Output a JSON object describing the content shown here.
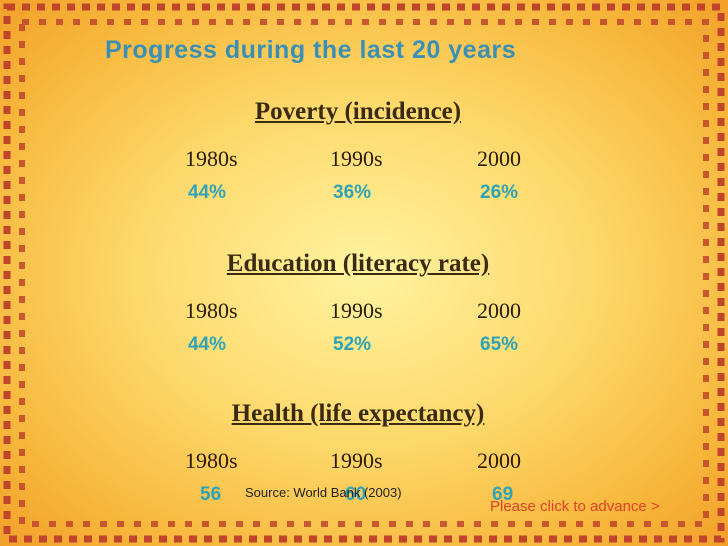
{
  "title": "Progress during the last 20 years",
  "sections": [
    {
      "heading": "Poverty (incidence)",
      "years": [
        "1980s",
        "1990s",
        "2000"
      ],
      "values": [
        "44%",
        "36%",
        "26%"
      ]
    },
    {
      "heading": "Education (literacy rate)",
      "years": [
        "1980s",
        "1990s",
        "2000"
      ],
      "values": [
        "44%",
        "52%",
        "65%"
      ]
    },
    {
      "heading": "Health (life expectancy)",
      "years": [
        "1980s",
        "1990s",
        "2000"
      ],
      "values": [
        "56",
        "60",
        "69"
      ]
    }
  ],
  "source": "Source: World Bank (2003)",
  "advance": "Please click to advance >"
}
